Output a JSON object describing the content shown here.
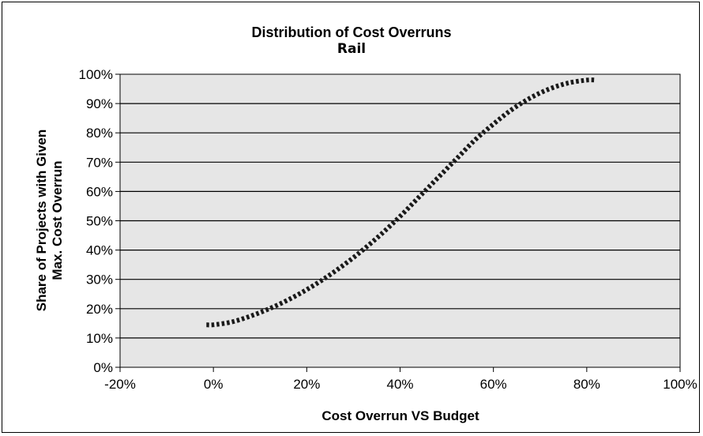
{
  "chart_data": {
    "type": "line",
    "title": "Distribution of Cost Overruns",
    "subtitle": "Rail",
    "xlabel": "Cost Overrun VS Budget",
    "ylabel": [
      "Share of Projects with Given",
      "Max. Cost Overrun"
    ],
    "x_ticks": [
      "-20%",
      "0%",
      "20%",
      "40%",
      "60%",
      "80%",
      "100%"
    ],
    "y_ticks": [
      "0%",
      "10%",
      "20%",
      "30%",
      "40%",
      "50%",
      "60%",
      "70%",
      "80%",
      "90%",
      "100%"
    ],
    "xlim": [
      -20,
      100
    ],
    "ylim": [
      0,
      100
    ],
    "grid": "horizontal",
    "background": "#e6e6e6",
    "line_color": "#1a1a1a",
    "line_style": "dotted",
    "series": [
      {
        "x": [
          -1.5,
          0,
          4,
          8,
          12,
          16,
          20,
          24,
          28,
          32,
          36,
          40,
          44,
          48,
          52,
          56,
          60,
          64,
          68,
          72,
          76,
          80,
          82
        ],
        "y": [
          14.5,
          14.5,
          15.5,
          17.5,
          20,
          23,
          26.5,
          30.5,
          35,
          40,
          45.5,
          51.5,
          58,
          64.5,
          71,
          77.5,
          83,
          88,
          92,
          95,
          97,
          98,
          98
        ]
      }
    ]
  }
}
